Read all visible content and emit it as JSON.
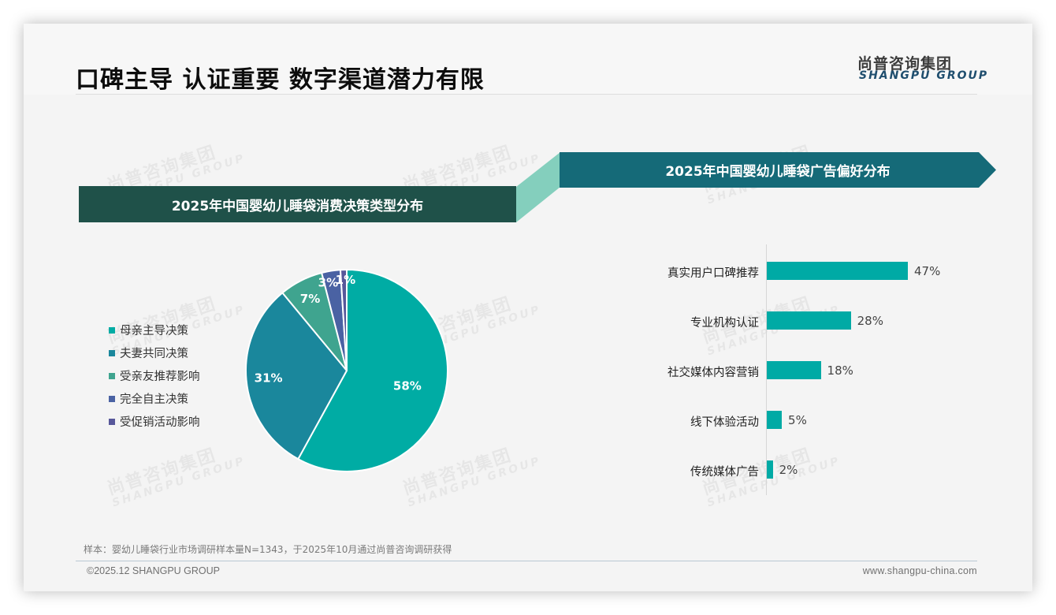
{
  "header": {
    "title": "口碑主导 认证重要 数字渠道潜力有限",
    "logo_cn": "尚普咨询集团",
    "logo_en": "SHANGPU GROUP"
  },
  "watermark": {
    "cn": "尚普咨询集团",
    "en": "SHANGPU GROUP"
  },
  "banners": {
    "left": "2025年中国婴幼儿睡袋消费决策类型分布",
    "right": "2025年中国婴幼儿睡袋广告偏好分布"
  },
  "colors": {
    "banner_left": "#1f5149",
    "banner_right": "#156a78",
    "connector": "#84cfbd",
    "bar": "#00aaa5",
    "pie": [
      "#00aca4",
      "#1a879c",
      "#3fa48f",
      "#4a62a3",
      "#57579a"
    ]
  },
  "chart_data": [
    {
      "type": "pie",
      "title": "2025年中国婴幼儿睡袋消费决策类型分布",
      "categories": [
        "母亲主导决策",
        "夫妻共同决策",
        "受亲友推荐影响",
        "完全自主决策",
        "受促销活动影响"
      ],
      "values": [
        58,
        31,
        7,
        3,
        1
      ],
      "labels": [
        "58%",
        "31%",
        "7%",
        "3%",
        "1%"
      ],
      "unit": "%",
      "legend_position": "left"
    },
    {
      "type": "bar",
      "orientation": "horizontal",
      "title": "2025年中国婴幼儿睡袋广告偏好分布",
      "categories": [
        "真实用户口碑推荐",
        "专业机构认证",
        "社交媒体内容营销",
        "线下体验活动",
        "传统媒体广告"
      ],
      "values": [
        47,
        28,
        18,
        5,
        2
      ],
      "labels": [
        "47%",
        "28%",
        "18%",
        "5%",
        "2%"
      ],
      "unit": "%",
      "grid": false,
      "xlim": [
        0,
        50
      ]
    }
  ],
  "legend": {
    "items": [
      {
        "label": "母亲主导决策"
      },
      {
        "label": "夫妻共同决策"
      },
      {
        "label": "受亲友推荐影响"
      },
      {
        "label": "完全自主决策"
      },
      {
        "label": "受促销活动影响"
      }
    ]
  },
  "footer": {
    "note": "样本：婴幼儿睡袋行业市场调研样本量N=1343，于2025年10月通过尚普咨询调研获得",
    "copyright": "©2025.12 SHANGPU GROUP",
    "url": "www.shangpu-china.com"
  }
}
